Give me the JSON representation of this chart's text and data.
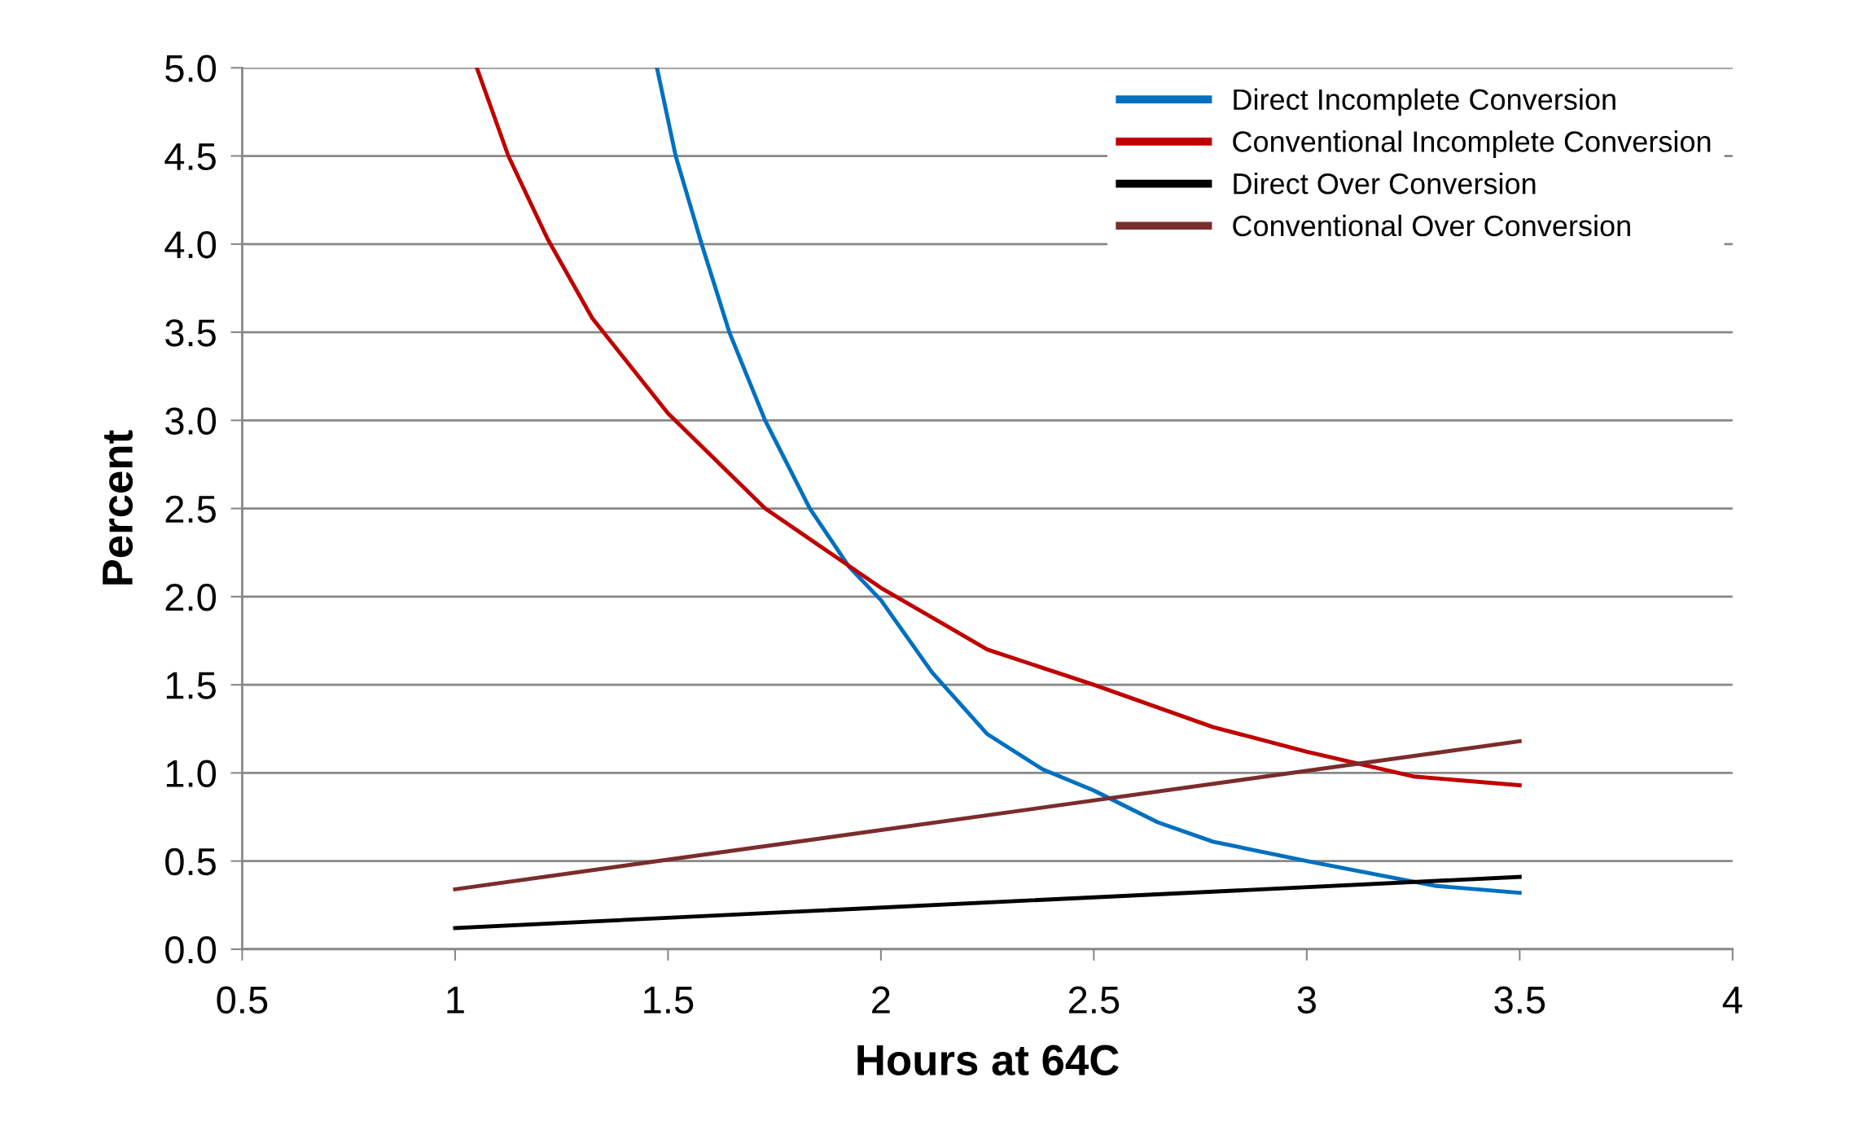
{
  "chart_data": {
    "type": "line",
    "xlabel": "Hours at 64C",
    "ylabel": "Percent",
    "series": [
      {
        "name": "Direct Incomplete Conversion",
        "color": "#0070c0",
        "x": [
          1.474,
          1.518,
          1.579,
          1.644,
          1.728,
          1.833,
          1.925,
          2.0,
          2.12,
          2.25,
          2.38,
          2.5,
          2.65,
          2.78,
          3.0,
          3.17,
          3.3,
          3.5
        ],
        "values": [
          5.0,
          4.5,
          4.0,
          3.5,
          3.0,
          2.5,
          2.17,
          1.98,
          1.57,
          1.22,
          1.02,
          0.9,
          0.72,
          0.61,
          0.5,
          0.42,
          0.36,
          0.32
        ]
      },
      {
        "name": "Conventional Incomplete Conversion",
        "color": "#c00000",
        "x": [
          1.051,
          1.125,
          1.217,
          1.322,
          1.5,
          1.728,
          2.0,
          2.25,
          2.5,
          2.78,
          3.0,
          3.25,
          3.5
        ],
        "values": [
          5.0,
          4.5,
          4.03,
          3.58,
          3.04,
          2.5,
          2.05,
          1.7,
          1.5,
          1.26,
          1.12,
          0.98,
          0.93
        ]
      },
      {
        "name": "Direct Over Conversion",
        "color": "#000000",
        "x": [
          1.0,
          3.5
        ],
        "values": [
          0.12,
          0.41
        ]
      },
      {
        "name": "Conventional Over Conversion",
        "color": "#7b2c2c",
        "x": [
          1.0,
          3.5
        ],
        "values": [
          0.34,
          1.18
        ]
      }
    ],
    "xlim": [
      0.5,
      4
    ],
    "xticks": [
      0.5,
      1,
      1.5,
      2,
      2.5,
      3,
      3.5,
      4
    ],
    "ylim": [
      0,
      5
    ],
    "yticks": [
      {
        "value": 0,
        "label": "0.0"
      },
      {
        "value": 0.5,
        "label": "0.5"
      },
      {
        "value": 1,
        "label": "1.0"
      },
      {
        "value": 1.5,
        "label": "1.5"
      },
      {
        "value": 2,
        "label": "2.0"
      },
      {
        "value": 2.5,
        "label": "2.5"
      },
      {
        "value": 3,
        "label": "3.0"
      },
      {
        "value": 3.5,
        "label": "3.5"
      },
      {
        "value": 4,
        "label": "4.0"
      },
      {
        "value": 4.5,
        "label": "4.5"
      },
      {
        "value": 5,
        "label": "5.0"
      }
    ],
    "grid": "y",
    "legend": "top right",
    "marker": "none",
    "line_style": "solid"
  }
}
